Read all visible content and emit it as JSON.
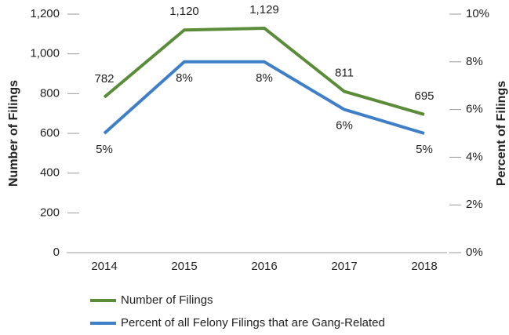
{
  "chart_data": {
    "type": "line",
    "categories": [
      "2014",
      "2015",
      "2016",
      "2017",
      "2018"
    ],
    "series": [
      {
        "name": "Number of Filings",
        "color": "#5b8c3a",
        "values": [
          782,
          1120,
          1129,
          811,
          695
        ],
        "value_labels": [
          "782",
          "1,120",
          "1,129",
          "811",
          "695"
        ]
      },
      {
        "name": "Percent of all Felony Filings that are Gang-Related",
        "color": "#3f7fc8",
        "axis": "y2",
        "values": [
          5,
          8,
          8,
          6,
          5
        ],
        "value_labels": [
          "5%",
          "8%",
          "8%",
          "6%",
          "5%"
        ]
      }
    ],
    "ylabel": "Number of Filings",
    "y2label": "Percent of Filings",
    "ylim": [
      0,
      1200
    ],
    "yticks": [
      0,
      200,
      400,
      600,
      800,
      {
        "value": 1000,
        "label": "1,000"
      },
      {
        "value": 1200,
        "label": "1,200"
      }
    ],
    "y2lim": [
      0,
      10
    ],
    "y2ticks": [
      {
        "value": 0,
        "label": "0%"
      },
      {
        "value": 2,
        "label": "2%"
      },
      {
        "value": 4,
        "label": "4%"
      },
      {
        "value": 6,
        "label": "6%"
      },
      {
        "value": 8,
        "label": "8%"
      },
      {
        "value": 10,
        "label": "10%"
      }
    ]
  }
}
